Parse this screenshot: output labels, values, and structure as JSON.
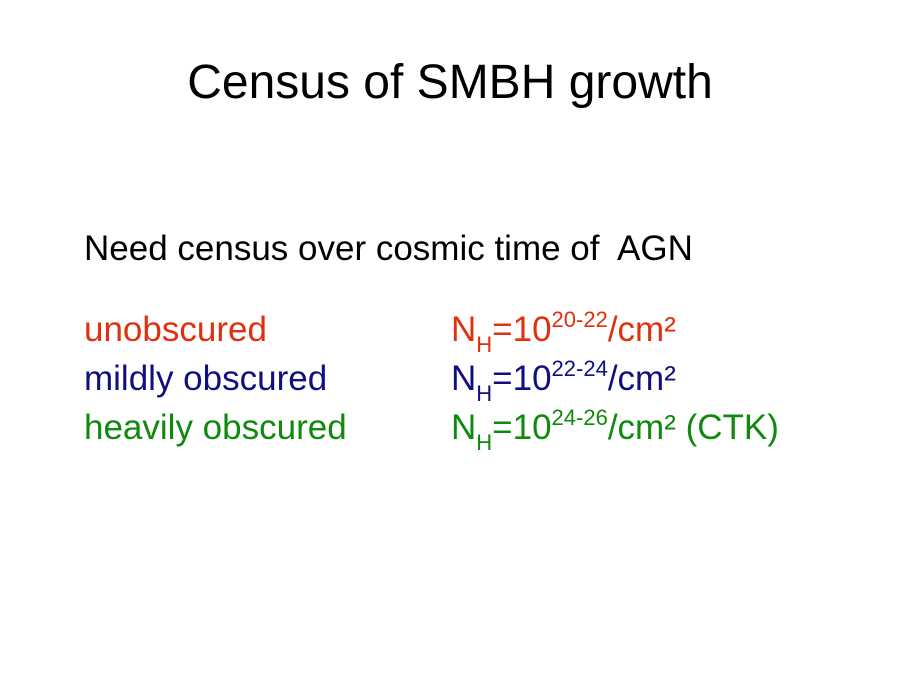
{
  "slide": {
    "title": "Census of SMBH growth",
    "subtitle": "Need census over cosmic time of  AGN",
    "rows": [
      {
        "label": "unobscured",
        "color": "#e0300e",
        "formula": {
          "symbol": "N",
          "subscript": "H",
          "base": "=10",
          "exponent": "20-22",
          "unit": "/cm²",
          "note": ""
        }
      },
      {
        "label": "mildly obscured",
        "color": "#0f0f80",
        "formula": {
          "symbol": "N",
          "subscript": "H",
          "base": "=10",
          "exponent": "22-24",
          "unit": "/cm²",
          "note": ""
        }
      },
      {
        "label": "heavily obscured",
        "color": "#0f8a0f",
        "formula": {
          "symbol": "N",
          "subscript": "H",
          "base": "=10",
          "exponent": "24-26",
          "unit": "/cm²",
          "note": " (CTK)"
        }
      }
    ]
  }
}
